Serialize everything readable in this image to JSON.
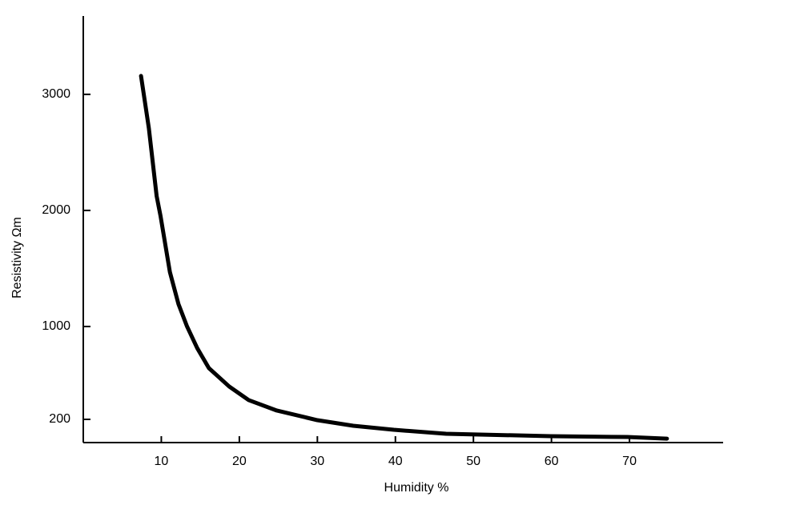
{
  "chart_data": {
    "type": "line",
    "x_label": "Humidity %",
    "y_label": "Resistivity Ωm",
    "x": [
      7.4,
      8.4,
      9.4,
      9.9,
      11.1,
      12.2,
      13.3,
      14.6,
      16.1,
      18.7,
      21.2,
      24.8,
      30,
      34.6,
      39.8,
      46.5,
      59.9,
      69.7,
      74.8
    ],
    "series": [
      {
        "name": "Resistivity",
        "color": "#000000",
        "values": [
          3159,
          2710,
          2124,
          1952,
          1469,
          1193,
          1000,
          814,
          641,
          483,
          366,
          276,
          193,
          145,
          110,
          76,
          55,
          48,
          34
        ]
      }
    ],
    "xlim": [
      0,
      82
    ],
    "ylim": [
      0,
      3675
    ],
    "xticks": [
      10,
      20,
      30,
      40,
      50,
      60,
      70
    ],
    "yticks": [
      200,
      1000,
      2000,
      3000
    ],
    "grid": false
  }
}
